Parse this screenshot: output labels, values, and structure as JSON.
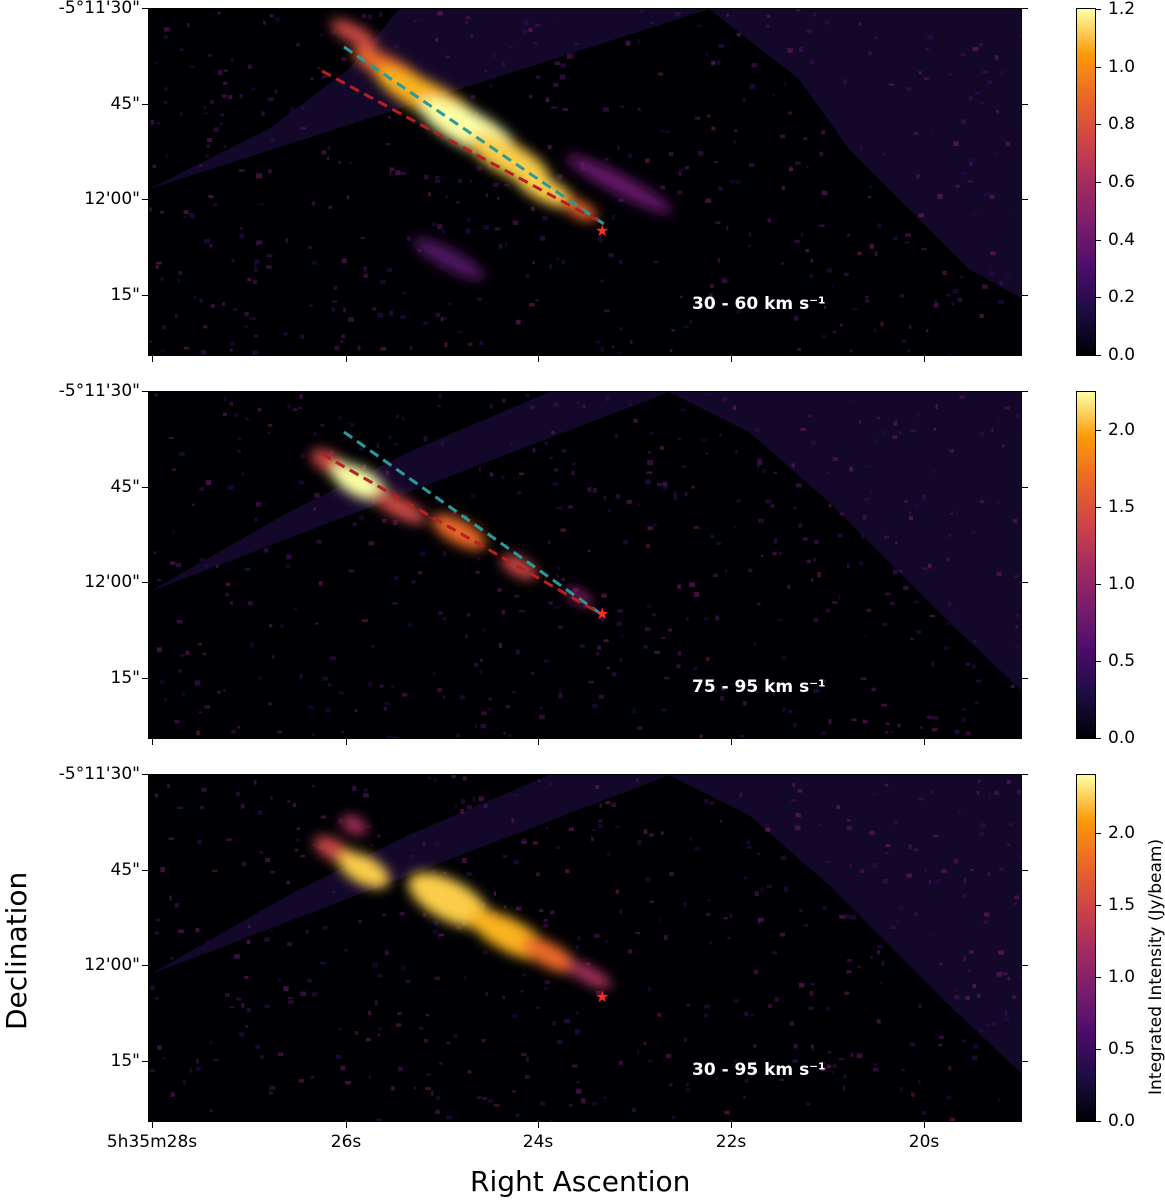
{
  "chart_data": [
    {
      "type": "heatmap",
      "panel_label": "30 - 60 km s⁻¹",
      "ytick_labels": [
        "-5°11'30\"",
        "45\"",
        "12'00\"",
        "15\""
      ],
      "colorbar": {
        "min": 0.0,
        "max": 1.2,
        "ticks": [
          "0.0",
          "0.2",
          "0.4",
          "0.6",
          "0.8",
          "1.0",
          "1.2"
        ]
      },
      "lines": [
        {
          "color": "#2a9a9a",
          "style": "dashed"
        },
        {
          "color": "#b52020",
          "style": "dashed"
        }
      ],
      "star_color": "#ff2a2a"
    },
    {
      "type": "heatmap",
      "panel_label": "75 - 95 km s⁻¹",
      "ytick_labels": [
        "-5°11'30\"",
        "45\"",
        "12'00\"",
        "15\""
      ],
      "colorbar": {
        "min": 0.0,
        "max": 2.25,
        "ticks": [
          "0.0",
          "0.5",
          "1.0",
          "1.5",
          "2.0"
        ]
      },
      "lines": [
        {
          "color": "#2a9a9a",
          "style": "dashed"
        },
        {
          "color": "#b52020",
          "style": "dashed"
        }
      ],
      "star_color": "#ff2a2a"
    },
    {
      "type": "heatmap",
      "panel_label": "30 - 95 km s⁻¹",
      "ytick_labels": [
        "-5°11'30\"",
        "45\"",
        "12'00\"",
        "15\""
      ],
      "colorbar": {
        "min": 0.0,
        "max": 2.4,
        "ticks": [
          "0.0",
          "0.5",
          "1.0",
          "1.5",
          "2.0"
        ]
      },
      "lines": [],
      "star_color": "#ff2a2a"
    }
  ],
  "xtick_labels": [
    "5h35m28s",
    "26s",
    "24s",
    "22s",
    "20s"
  ],
  "xlabel": "Right Ascention",
  "ylabel": "Declination",
  "colorbar_label": "Integrated Intensity (Jy/beam)",
  "colormap": "inferno"
}
